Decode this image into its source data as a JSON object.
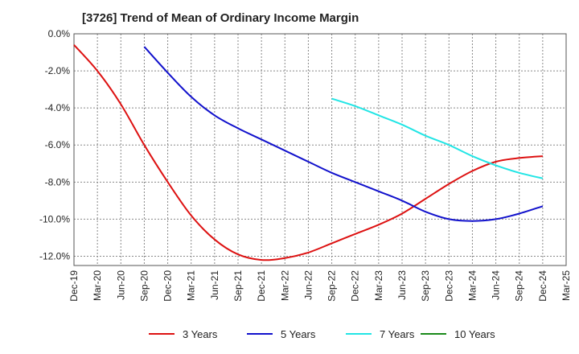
{
  "title": "[3726]  Trend of Mean of Ordinary Income Margin",
  "chart_data": {
    "type": "line",
    "title": "[3726]  Trend of Mean of Ordinary Income Margin",
    "xlabel": "",
    "ylabel": "",
    "ylim": [
      -12.5,
      0
    ],
    "y_ticks": [
      0,
      -2,
      -4,
      -6,
      -8,
      -10,
      -12
    ],
    "y_tick_labels": [
      "0.0%",
      "-2.0%",
      "-4.0%",
      "-6.0%",
      "-8.0%",
      "-10.0%",
      "-12.0%"
    ],
    "x_ticks": [
      "Dec-19",
      "Mar-20",
      "Jun-20",
      "Sep-20",
      "Dec-20",
      "Mar-21",
      "Jun-21",
      "Sep-21",
      "Dec-21",
      "Mar-22",
      "Jun-22",
      "Sep-22",
      "Dec-22",
      "Mar-23",
      "Jun-23",
      "Sep-23",
      "Dec-23",
      "Mar-24",
      "Jun-24",
      "Sep-24",
      "Dec-24",
      "Mar-25"
    ],
    "grid": true,
    "legend_position": "bottom",
    "series": [
      {
        "name": "3 Years",
        "color": "#dd1111",
        "points": [
          [
            "Dec-19",
            -0.6
          ],
          [
            "Mar-20",
            -2.0
          ],
          [
            "Jun-20",
            -3.8
          ],
          [
            "Sep-20",
            -6.0
          ],
          [
            "Dec-20",
            -8.0
          ],
          [
            "Mar-21",
            -9.8
          ],
          [
            "Jun-21",
            -11.1
          ],
          [
            "Sep-21",
            -11.9
          ],
          [
            "Dec-21",
            -12.2
          ],
          [
            "Mar-22",
            -12.1
          ],
          [
            "Jun-22",
            -11.8
          ],
          [
            "Sep-22",
            -11.3
          ],
          [
            "Dec-22",
            -10.8
          ],
          [
            "Mar-23",
            -10.3
          ],
          [
            "Jun-23",
            -9.7
          ],
          [
            "Sep-23",
            -8.9
          ],
          [
            "Dec-23",
            -8.1
          ],
          [
            "Mar-24",
            -7.4
          ],
          [
            "Jun-24",
            -6.9
          ],
          [
            "Sep-24",
            -6.7
          ],
          [
            "Dec-24",
            -6.6
          ]
        ]
      },
      {
        "name": "5 Years",
        "color": "#1111cc",
        "points": [
          [
            "Sep-20",
            -0.7
          ],
          [
            "Dec-20",
            -2.1
          ],
          [
            "Mar-21",
            -3.4
          ],
          [
            "Jun-21",
            -4.4
          ],
          [
            "Sep-21",
            -5.1
          ],
          [
            "Dec-21",
            -5.7
          ],
          [
            "Mar-22",
            -6.3
          ],
          [
            "Jun-22",
            -6.9
          ],
          [
            "Sep-22",
            -7.5
          ],
          [
            "Dec-22",
            -8.0
          ],
          [
            "Mar-23",
            -8.5
          ],
          [
            "Jun-23",
            -9.0
          ],
          [
            "Sep-23",
            -9.6
          ],
          [
            "Dec-23",
            -10.0
          ],
          [
            "Mar-24",
            -10.1
          ],
          [
            "Jun-24",
            -10.0
          ],
          [
            "Sep-24",
            -9.7
          ],
          [
            "Dec-24",
            -9.3
          ]
        ]
      },
      {
        "name": "7 Years",
        "color": "#22e5e5",
        "points": [
          [
            "Sep-22",
            -3.5
          ],
          [
            "Dec-22",
            -3.9
          ],
          [
            "Mar-23",
            -4.4
          ],
          [
            "Jun-23",
            -4.9
          ],
          [
            "Sep-23",
            -5.5
          ],
          [
            "Dec-23",
            -6.0
          ],
          [
            "Mar-24",
            -6.6
          ],
          [
            "Jun-24",
            -7.1
          ],
          [
            "Sep-24",
            -7.5
          ],
          [
            "Dec-24",
            -7.8
          ]
        ]
      },
      {
        "name": "10 Years",
        "color": "#1a8a1a",
        "points": []
      }
    ]
  }
}
